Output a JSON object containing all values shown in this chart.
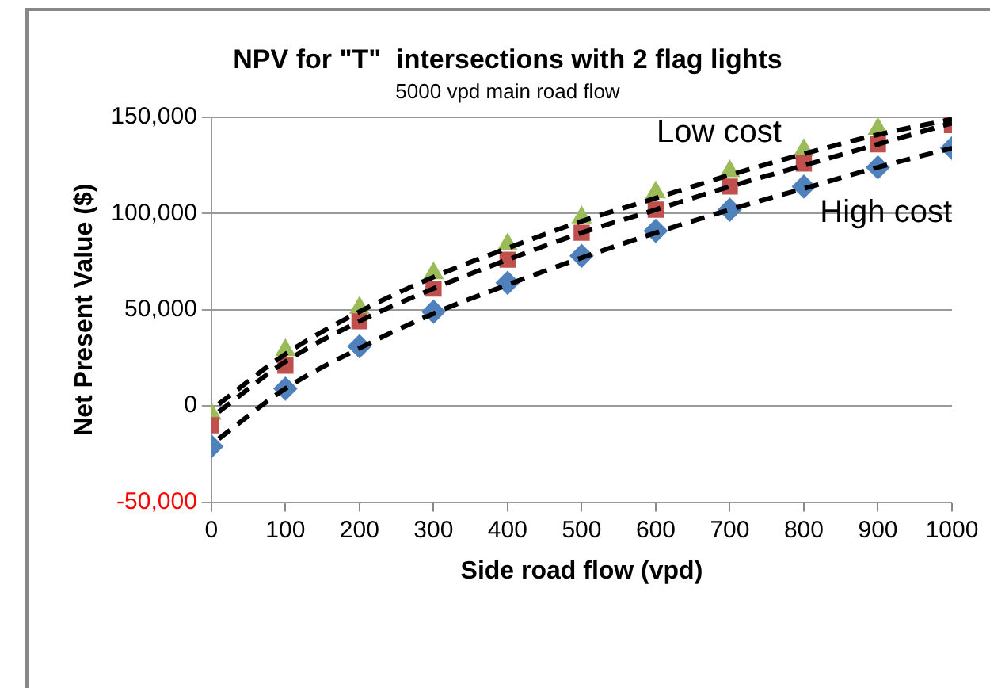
{
  "chart_data": {
    "type": "scatter",
    "title": "NPV for \"T\"  intersections with 2 flag lights",
    "subtitle": "5000 vpd main road flow",
    "xlabel": "Side road flow (vpd)",
    "ylabel": "Net Present Value ($)",
    "x": [
      0,
      100,
      200,
      300,
      400,
      500,
      600,
      700,
      800,
      900,
      1000
    ],
    "xlim": [
      0,
      1000
    ],
    "xticks": [
      0,
      100,
      200,
      300,
      400,
      500,
      600,
      700,
      800,
      900,
      1000
    ],
    "ylim": [
      -50000,
      150000
    ],
    "yticks": [
      {
        "value": -50000,
        "label": "-50,000"
      },
      {
        "value": 0,
        "label": "0"
      },
      {
        "value": 50000,
        "label": "50,000"
      },
      {
        "value": 100000,
        "label": "100,000"
      },
      {
        "value": 150000,
        "label": "150,000"
      }
    ],
    "grid": "y",
    "legend": false,
    "series": [
      {
        "color": "#4f81bd",
        "marker": "diamond",
        "values": [
          -21000,
          9000,
          31000,
          49000,
          64000,
          78000,
          91000,
          102000,
          114000,
          124000,
          134000
        ]
      },
      {
        "color": "#c0504d",
        "marker": "square",
        "values": [
          -10000,
          21000,
          44000,
          61000,
          76000,
          90000,
          102000,
          114000,
          126000,
          136000,
          146000
        ]
      },
      {
        "color": "#9bbb59",
        "marker": "triangle",
        "values": [
          -4000,
          29000,
          51000,
          69000,
          84000,
          98000,
          111000,
          122000,
          133000,
          144000,
          null
        ]
      },
      {
        "type": "line",
        "color": "#000000",
        "line_style": "dashed",
        "marker": "none",
        "x": [
          10,
          100,
          200,
          300,
          400,
          500,
          600,
          700,
          800,
          900,
          1000
        ],
        "values": [
          -17000,
          9000,
          30000,
          48000,
          63000,
          77000,
          90000,
          102000,
          113000,
          124000,
          134000
        ]
      },
      {
        "type": "line",
        "color": "#000000",
        "line_style": "dashed",
        "marker": "none",
        "x": [
          10,
          100,
          200,
          300,
          400,
          500,
          600,
          700,
          800,
          900,
          1000
        ],
        "values": [
          -3000,
          23000,
          44000,
          61000,
          76000,
          90000,
          102000,
          114000,
          125000,
          136000,
          147000
        ]
      },
      {
        "type": "line",
        "color": "#000000",
        "line_style": "dashed",
        "marker": "none",
        "x": [
          10,
          100,
          200,
          300,
          400,
          500,
          600,
          700,
          800,
          900,
          1000
        ],
        "values": [
          1000,
          27000,
          49000,
          67000,
          82000,
          96000,
          108000,
          120000,
          131000,
          141000,
          149000
        ]
      }
    ],
    "annotations": [
      "Low cost",
      "High cost"
    ]
  }
}
